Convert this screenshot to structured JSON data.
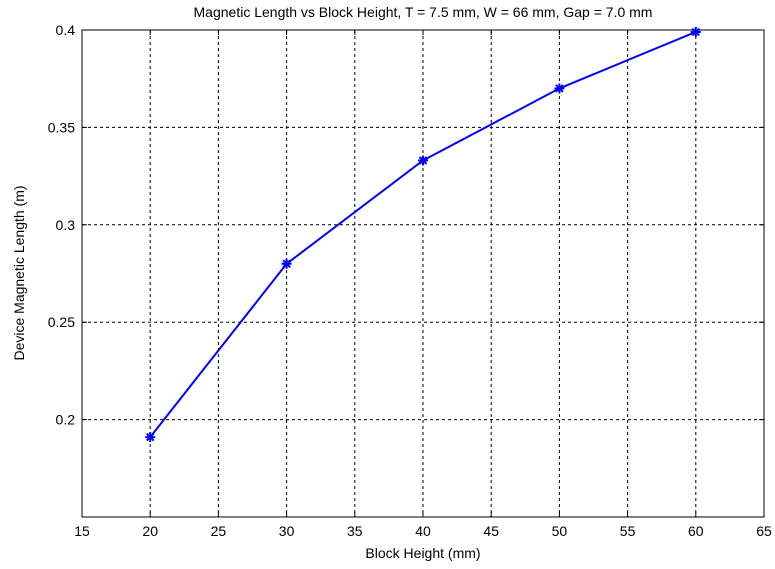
{
  "chart_data": {
    "type": "line",
    "title": "Magnetic Length vs Block Height, T = 7.5 mm, W = 66 mm, Gap = 7.0 mm",
    "xlabel": "Block Height (mm)",
    "ylabel": "Device Magnetic Length (m)",
    "xlim": [
      15,
      65
    ],
    "ylim": [
      0.15,
      0.4
    ],
    "xticks": [
      15,
      20,
      25,
      30,
      35,
      40,
      45,
      50,
      55,
      60,
      65
    ],
    "yticks": [
      0.2,
      0.25,
      0.3,
      0.35,
      0.4
    ],
    "ytick_labels": [
      "0.2",
      "0.25",
      "0.3",
      "0.35",
      "0.4"
    ],
    "grid": true,
    "series": [
      {
        "color": "#0000ff",
        "marker": "asterisk",
        "x": [
          20,
          30,
          40,
          50,
          60
        ],
        "y": [
          0.191,
          0.28,
          0.333,
          0.37,
          0.399
        ]
      }
    ]
  }
}
